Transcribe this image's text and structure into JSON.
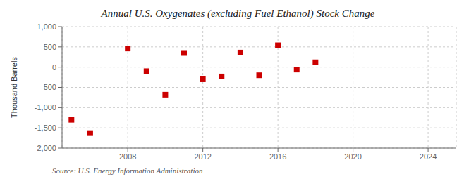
{
  "chart_data": {
    "type": "scatter",
    "title": "Annual U.S. Oxygenates (excluding Fuel Ethanol) Stock Change",
    "ylabel": "Thousand Barrels",
    "source": "Source: U.S. Energy Information Administration",
    "x": [
      2005,
      2006,
      2008,
      2009,
      2010,
      2011,
      2012,
      2013,
      2014,
      2015,
      2016,
      2017,
      2018
    ],
    "values": [
      -1300,
      -1630,
      460,
      -100,
      -680,
      350,
      -300,
      -230,
      360,
      -200,
      540,
      -60,
      120
    ],
    "color": "#cc0000",
    "marker": "square",
    "xlim": [
      2004.5,
      2025.5
    ],
    "ylim": [
      -2000,
      1000
    ],
    "xticks": [
      2008,
      2012,
      2016,
      2020,
      2024
    ],
    "yticks": [
      {
        "value": -2000,
        "label": "-2,000"
      },
      {
        "value": -1500,
        "label": "-1,500"
      },
      {
        "value": -1000,
        "label": "-1,000"
      },
      -500,
      0,
      500,
      {
        "value": 1000,
        "label": "1,000"
      }
    ],
    "grid": true
  }
}
